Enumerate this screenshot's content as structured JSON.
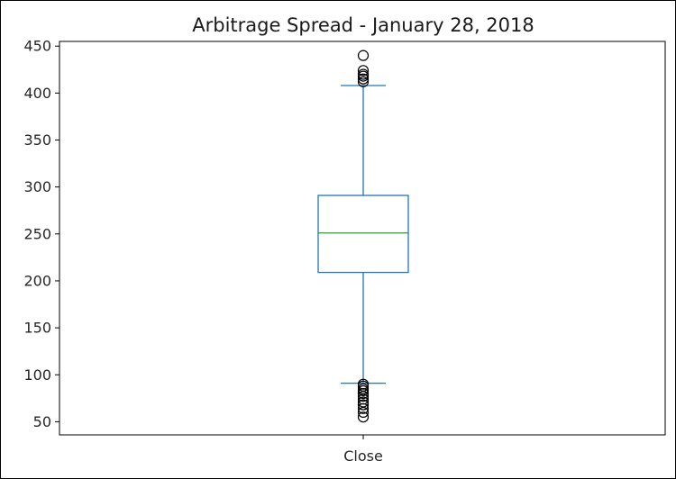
{
  "chart_data": {
    "type": "box",
    "title": "Arbitrage Spread - January 28, 2018",
    "categories": [
      "Close"
    ],
    "xlabel": "",
    "ylabel": "",
    "ylim": [
      36,
      455
    ],
    "yticks": [
      50,
      100,
      150,
      200,
      250,
      300,
      350,
      400,
      450
    ],
    "box": {
      "whisker_low": 91,
      "q1": 209,
      "median": 251,
      "q3": 291,
      "whisker_high": 408
    },
    "outliers_high": [
      412,
      415,
      418,
      420,
      424,
      440
    ],
    "outliers_low": [
      55,
      60,
      64,
      68,
      71,
      74,
      77,
      80,
      83,
      85,
      88,
      90
    ],
    "grid": false,
    "colors": {
      "box": "#1f77b4",
      "median": "#2ca02c",
      "outlier": "#000000",
      "axes": "#000000"
    }
  }
}
